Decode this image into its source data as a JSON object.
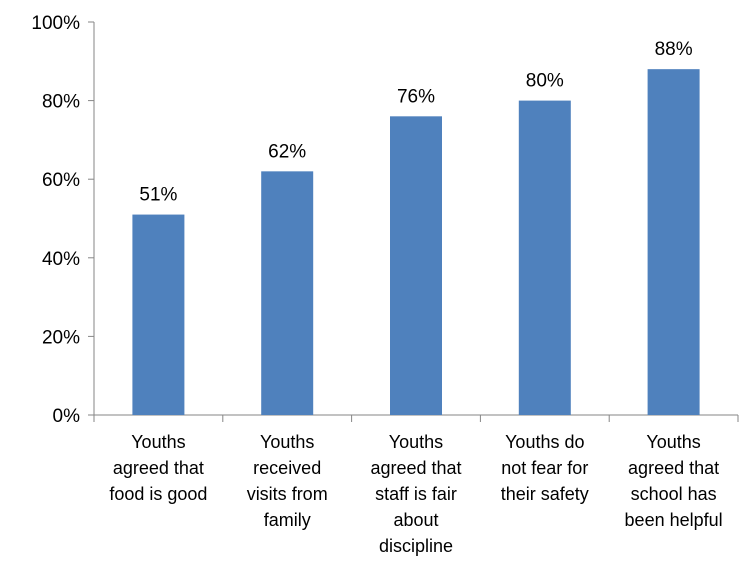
{
  "chart_data": {
    "type": "bar",
    "categories": [
      [
        "Youths",
        "agreed that",
        "food is good"
      ],
      [
        "Youths",
        "received",
        "visits from",
        "family"
      ],
      [
        "Youths",
        "agreed that",
        "staff is fair",
        "about",
        "discipline"
      ],
      [
        "Youths do",
        "not fear for",
        "their safety"
      ],
      [
        "Youths",
        "agreed that",
        "school has",
        "been helpful"
      ]
    ],
    "values": [
      51,
      62,
      76,
      80,
      88
    ],
    "data_labels": [
      "51%",
      "62%",
      "76%",
      "80%",
      "88%"
    ],
    "y_ticks": [
      "0%",
      "20%",
      "40%",
      "60%",
      "80%",
      "100%"
    ],
    "ylim": [
      0,
      100
    ],
    "grid": false,
    "legend": "none",
    "colors": {
      "bar": "#4F81BD",
      "axis": "#868686"
    }
  }
}
